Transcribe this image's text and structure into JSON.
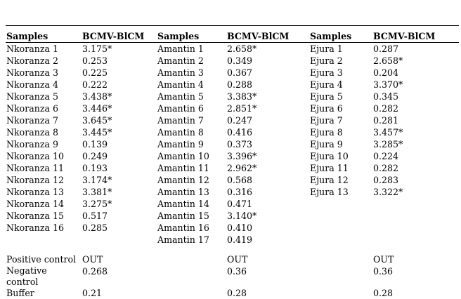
{
  "headers": [
    "Samples",
    "BCMV-BlCM",
    "Samples",
    "BCMV-BlCM",
    "Samples",
    "BCMV-BlCM"
  ],
  "rows": [
    [
      "Nkoranza 1",
      "3.175*",
      "Amantin 1",
      "2.658*",
      "Ejura 1",
      "0.287"
    ],
    [
      "Nkoranza 2",
      "0.253",
      "Amantin 2",
      "0.349",
      "Ejura 2",
      "2.658*"
    ],
    [
      "Nkoranza 3",
      "0.225",
      "Amantin 3",
      "0.367",
      "Ejura 3",
      "0.204"
    ],
    [
      "Nkoranza 4",
      "0.222",
      "Amantin 4",
      "0.288",
      "Ejura 4",
      "3.370*"
    ],
    [
      "Nkoranza 5",
      "3.438*",
      "Amantin 5",
      "3.383*",
      "Ejura 5",
      "0.345"
    ],
    [
      "Nkoranza 6",
      "3.446*",
      "Amantin 6",
      "2.851*",
      "Ejura 6",
      "0.282"
    ],
    [
      "Nkoranza 7",
      "3.645*",
      "Amantin 7",
      "0.247",
      "Ejura 7",
      "0.281"
    ],
    [
      "Nkoranza 8",
      "3.445*",
      "Amantin 8",
      "0.416",
      "Ejura 8",
      "3.457*"
    ],
    [
      "Nkoranza 9",
      "0.139",
      "Amantin 9",
      "0.373",
      "Ejura 9",
      "3.285*"
    ],
    [
      "Nkoranza 10",
      "0.249",
      "Amantin 10",
      "3.396*",
      "Ejura 10",
      "0.224"
    ],
    [
      "Nkoranza 11",
      "0.193",
      "Amantin 11",
      "2.962*",
      "Ejura 11",
      "0.282"
    ],
    [
      "Nkoranza 12",
      "3.174*",
      "Amantin 12",
      "0.568",
      "Ejura 12",
      "0.283"
    ],
    [
      "Nkoranza 13",
      "3.381*",
      "Amantin 13",
      "0.316",
      "Ejura 13",
      "3.322*"
    ],
    [
      "Nkoranza 14",
      "3.275*",
      "Amantin 14",
      "0.471",
      "",
      ""
    ],
    [
      "Nkoranza 15",
      "0.517",
      "Amantin 15",
      "3.140*",
      "",
      ""
    ],
    [
      "Nkoranza 16",
      "0.285",
      "Amantin 16",
      "0.410",
      "",
      ""
    ],
    [
      "",
      "",
      "Amantin 17",
      "0.419",
      "",
      ""
    ]
  ],
  "controls": [
    [
      "Positive control",
      "OUT",
      "",
      "OUT",
      "",
      "OUT"
    ],
    [
      "Negative control",
      "0.268",
      "",
      "0.36",
      "",
      "0.36"
    ],
    [
      "Buffer",
      "0.21",
      "",
      "0.28",
      "",
      "0.28"
    ]
  ]
}
